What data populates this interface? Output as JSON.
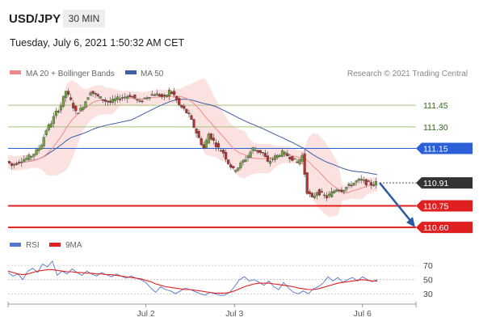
{
  "header": {
    "symbol": "USD/JPY",
    "timeframe": "30 MIN",
    "datetime": "Tuesday, July 6, 2021 1:50:32 AM CET"
  },
  "legend": {
    "ma20_label": "MA 20 + Bollinger Bands",
    "ma50_label": "MA 50",
    "copyright": "Research © 2021 Trading Central",
    "rsi_label": "RSI",
    "rsi_ma_label": "9MA"
  },
  "colors": {
    "candle_up": "#6fa53c",
    "candle_down": "#b8312f",
    "ma20": "#f08a8a",
    "bollinger_fill": "#fbdcdc",
    "ma50": "#3d5ea8",
    "green_level": "#a8c47a",
    "blue_level": "#2a5fd6",
    "red_level": "#e02020",
    "current_price": "#333333",
    "rsi": "#5577cc",
    "rsi_ma": "#dd2222",
    "arrow": "#2a5aa0"
  },
  "chart_data": [
    {
      "type": "candlestick",
      "title": "USD/JPY",
      "timeframe": "30 MIN",
      "ylim": [
        110.55,
        111.62
      ],
      "x_tick_labels": [
        "Jul 2",
        "Jul 3",
        "Jul 6"
      ],
      "levels": [
        {
          "value": 111.45,
          "label": "111.45",
          "style": "green"
        },
        {
          "value": 111.3,
          "label": "111.30",
          "style": "green"
        },
        {
          "value": 111.15,
          "label": "111.15",
          "style": "blue"
        },
        {
          "value": 110.91,
          "label": "110.91",
          "style": "current"
        },
        {
          "value": 110.75,
          "label": "110.75",
          "style": "red"
        },
        {
          "value": 110.6,
          "label": "110.60",
          "style": "red"
        }
      ],
      "close_series": [
        111.06,
        111.03,
        111.05,
        111.07,
        111.08,
        111.1,
        111.13,
        111.18,
        111.28,
        111.33,
        111.4,
        111.45,
        111.55,
        111.48,
        111.4,
        111.42,
        111.48,
        111.55,
        111.52,
        111.5,
        111.48,
        111.47,
        111.49,
        111.5,
        111.51,
        111.52,
        111.5,
        111.47,
        111.5,
        111.52,
        111.53,
        111.52,
        111.5,
        111.55,
        111.52,
        111.45,
        111.42,
        111.38,
        111.3,
        111.22,
        111.15,
        111.25,
        111.2,
        111.15,
        111.12,
        111.05,
        111.0,
        111.02,
        111.06,
        111.1,
        111.15,
        111.13,
        111.12,
        111.05,
        111.08,
        111.1,
        111.12,
        111.1,
        111.08,
        111.05,
        111.1,
        110.85,
        110.8,
        110.85,
        110.83,
        110.81,
        110.84,
        110.87,
        110.86,
        110.88,
        110.9,
        110.92,
        110.93,
        110.91,
        110.9,
        110.91
      ]
    },
    {
      "type": "line",
      "title": "RSI",
      "ylim": [
        20,
        85
      ],
      "y_tick_labels": [
        "70",
        "50",
        "30"
      ],
      "series": [
        {
          "name": "RSI",
          "values": [
            60,
            55,
            58,
            50,
            62,
            66,
            60,
            72,
            68,
            76,
            56,
            62,
            58,
            65,
            60,
            56,
            62,
            58,
            55,
            60,
            57,
            54,
            58,
            55,
            52,
            55,
            52,
            50,
            46,
            38,
            32,
            40,
            36,
            34,
            30,
            34,
            38,
            36,
            33,
            30,
            28,
            32,
            30,
            28,
            28,
            32,
            40,
            50,
            54,
            48,
            50,
            46,
            42,
            48,
            40,
            36,
            46,
            38,
            32,
            30,
            34,
            30,
            37,
            40,
            45,
            54,
            48,
            53,
            46,
            50,
            53,
            48,
            54,
            50,
            47,
            50
          ]
        },
        {
          "name": "9MA",
          "values": [
            62,
            60,
            58,
            57,
            58,
            60,
            62,
            63,
            64,
            64,
            63,
            62,
            61,
            61,
            60,
            60,
            59,
            59,
            58,
            58,
            57,
            57,
            56,
            55,
            54,
            53,
            52,
            51,
            49,
            47,
            44,
            42,
            40,
            39,
            38,
            37,
            36,
            36,
            35,
            34,
            33,
            32,
            31,
            31,
            31,
            32,
            34,
            37,
            40,
            42,
            44,
            45,
            45,
            45,
            44,
            43,
            42,
            41,
            40,
            38,
            37,
            36,
            36,
            37,
            39,
            41,
            43,
            45,
            46,
            47,
            48,
            49,
            50,
            49,
            48,
            48
          ]
        }
      ]
    }
  ]
}
